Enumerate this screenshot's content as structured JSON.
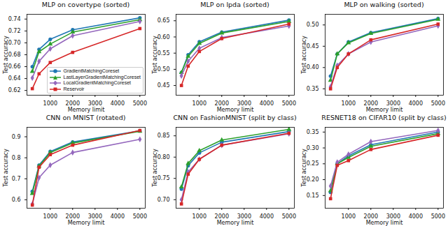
{
  "chart_data": [
    {
      "type": "line",
      "title": "MLP on covertype (sorted)",
      "x_label": "Memory limit",
      "y_label": "Test accuracy",
      "x": [
        200,
        500,
        1000,
        2000,
        5000
      ],
      "xlim": [
        -40,
        5240
      ],
      "xticks": [
        1000,
        2000,
        3000,
        4000,
        5000
      ],
      "ylim": [
        0.612,
        0.748
      ],
      "yticks": [
        0.62,
        0.64,
        0.66,
        0.68,
        0.7,
        {
          "value": 0.7,
          "label": "0.70"
        },
        0.72,
        0.74
      ],
      "grid": false,
      "legend": "lower right",
      "series": [
        {
          "name": "GradientMatchingCoreset",
          "color": "#1f77b4",
          "marker": "circle",
          "values": [
            0.66,
            0.689,
            0.706,
            0.722,
            0.742
          ]
        },
        {
          "name": "LastLayerGradientMatchingCoreset",
          "color": "#2ca02c",
          "marker": "triangle",
          "values": [
            0.652,
            0.685,
            0.698,
            0.718,
            0.739
          ]
        },
        {
          "name": "LocalGradientMatchingCoreset",
          "color": "#9467bd",
          "marker": "diamond",
          "values": [
            0.641,
            0.669,
            0.69,
            0.712,
            0.736
          ]
        },
        {
          "name": "Reservoir",
          "color": "#d62728",
          "marker": "square",
          "values": [
            0.623,
            0.648,
            0.667,
            0.684,
            0.724
          ]
        }
      ]
    },
    {
      "type": "line",
      "title": "MLP on lpda (sorted)",
      "x_label": "Memory limit",
      "y_label": "Test accuracy",
      "x": [
        200,
        500,
        1000,
        2000,
        5000
      ],
      "xlim": [
        -40,
        5240
      ],
      "xticks": [
        1000,
        2000,
        3000,
        4000,
        5000
      ],
      "ylim": [
        0.42,
        0.67
      ],
      "yticks": [
        0.45,
        {
          "value": 0.5,
          "label": "0.50"
        },
        0.55,
        {
          "value": 0.6,
          "label": "0.60"
        },
        0.65
      ],
      "grid": false,
      "series": [
        {
          "name": "GradientMatchingCoreset",
          "color": "#1f77b4",
          "marker": "circle",
          "values": [
            0.49,
            0.545,
            0.585,
            0.615,
            0.652
          ]
        },
        {
          "name": "LastLayerGradientMatchingCoreset",
          "color": "#2ca02c",
          "marker": "triangle",
          "values": [
            0.49,
            0.54,
            0.58,
            0.612,
            0.648
          ]
        },
        {
          "name": "LocalGradientMatchingCoreset",
          "color": "#9467bd",
          "marker": "diamond",
          "values": [
            0.48,
            0.525,
            0.565,
            0.598,
            0.634
          ]
        },
        {
          "name": "Reservoir",
          "color": "#d62728",
          "marker": "square",
          "values": [
            0.45,
            0.51,
            0.555,
            0.595,
            0.64
          ]
        }
      ]
    },
    {
      "type": "line",
      "title": "MLP on walking (sorted)",
      "x_label": "Memory limit",
      "y_label": "Test accuracy",
      "x": [
        200,
        500,
        1000,
        2000,
        5000
      ],
      "xlim": [
        -40,
        5240
      ],
      "xticks": [
        1000,
        2000,
        3000,
        4000,
        5000
      ],
      "ylim": [
        0.335,
        0.525
      ],
      "yticks": [
        0.35,
        {
          "value": 0.4,
          "label": "0.40"
        },
        0.45,
        {
          "value": 0.5,
          "label": "0.50"
        }
      ],
      "grid": false,
      "series": [
        {
          "name": "GradientMatchingCoreset",
          "color": "#1f77b4",
          "marker": "circle",
          "values": [
            0.38,
            0.432,
            0.46,
            0.482,
            0.515
          ]
        },
        {
          "name": "LastLayerGradientMatchingCoreset",
          "color": "#2ca02c",
          "marker": "triangle",
          "values": [
            0.37,
            0.432,
            0.458,
            0.48,
            0.513
          ]
        },
        {
          "name": "LocalGradientMatchingCoreset",
          "color": "#9467bd",
          "marker": "diamond",
          "values": [
            0.355,
            0.405,
            0.432,
            0.46,
            0.498
          ]
        },
        {
          "name": "Reservoir",
          "color": "#d62728",
          "marker": "square",
          "values": [
            0.35,
            0.4,
            0.432,
            0.465,
            0.502
          ]
        }
      ]
    },
    {
      "type": "line",
      "title": "CNN on MNIST (rotated)",
      "x_label": "Memory limit",
      "y_label": "Test accuracy",
      "x": [
        200,
        500,
        1000,
        2000,
        5000
      ],
      "xlim": [
        -40,
        5240
      ],
      "xticks": [
        1000,
        2000,
        3000,
        4000,
        5000
      ],
      "ylim": [
        0.56,
        0.945
      ],
      "yticks": [
        0.6,
        0.7,
        0.8,
        0.9
      ],
      "grid": false,
      "series": [
        {
          "name": "GradientMatchingCoreset",
          "color": "#1f77b4",
          "marker": "circle",
          "values": [
            0.64,
            0.765,
            0.83,
            0.875,
            0.928
          ]
        },
        {
          "name": "LastLayerGradientMatchingCoreset",
          "color": "#2ca02c",
          "marker": "triangle",
          "values": [
            0.63,
            0.76,
            0.825,
            0.87,
            0.926
          ]
        },
        {
          "name": "LocalGradientMatchingCoreset",
          "color": "#9467bd",
          "marker": "diamond",
          "values": [
            0.58,
            0.705,
            0.765,
            0.825,
            0.888
          ]
        },
        {
          "name": "Reservoir",
          "color": "#d62728",
          "marker": "square",
          "values": [
            0.575,
            0.755,
            0.815,
            0.86,
            0.93
          ]
        }
      ]
    },
    {
      "type": "line",
      "title": "CNN on FashionMNIST (split by class)",
      "x_label": "Memory limit",
      "y_label": "Test accuracy",
      "x": [
        200,
        500,
        1000,
        2000,
        5000
      ],
      "xlim": [
        -40,
        5240
      ],
      "xticks": [
        1000,
        2000,
        3000,
        4000,
        5000
      ],
      "ylim": [
        0.68,
        0.87
      ],
      "yticks": [
        {
          "value": 0.7,
          "label": "0.70"
        },
        0.75,
        {
          "value": 0.8,
          "label": "0.80"
        },
        0.85
      ],
      "grid": false,
      "series": [
        {
          "name": "GradientMatchingCoreset",
          "color": "#1f77b4",
          "marker": "circle",
          "values": [
            0.725,
            0.78,
            0.81,
            0.835,
            0.86
          ]
        },
        {
          "name": "LastLayerGradientMatchingCoreset",
          "color": "#2ca02c",
          "marker": "triangle",
          "values": [
            0.73,
            0.785,
            0.815,
            0.84,
            0.865
          ]
        },
        {
          "name": "LocalGradientMatchingCoreset",
          "color": "#9467bd",
          "marker": "diamond",
          "values": [
            0.7,
            0.765,
            0.795,
            0.828,
            0.855
          ]
        },
        {
          "name": "Reservoir",
          "color": "#d62728",
          "marker": "square",
          "values": [
            0.69,
            0.76,
            0.795,
            0.828,
            0.856
          ]
        }
      ]
    },
    {
      "type": "line",
      "title": "RESNET18 on CIFAR10 (split by class)",
      "x_label": "Memory limit",
      "y_label": "Test accuracy",
      "x": [
        200,
        500,
        1000,
        2000,
        5000
      ],
      "xlim": [
        -40,
        5240
      ],
      "xticks": [
        1000,
        2000,
        3000,
        4000,
        5000
      ],
      "ylim": [
        0.11,
        0.365
      ],
      "yticks": [
        0.15,
        {
          "value": 0.2,
          "label": "0.20"
        },
        0.25,
        {
          "value": 0.3,
          "label": "0.30"
        },
        0.35
      ],
      "grid": false,
      "series": [
        {
          "name": "GradientMatchingCoreset",
          "color": "#1f77b4",
          "marker": "circle",
          "values": [
            0.16,
            0.25,
            0.275,
            0.31,
            0.35
          ]
        },
        {
          "name": "LastLayerGradientMatchingCoreset",
          "color": "#2ca02c",
          "marker": "triangle",
          "values": [
            0.165,
            0.25,
            0.27,
            0.305,
            0.345
          ]
        },
        {
          "name": "LocalGradientMatchingCoreset",
          "color": "#9467bd",
          "marker": "diamond",
          "values": [
            0.18,
            0.255,
            0.28,
            0.32,
            0.355
          ]
        },
        {
          "name": "Reservoir",
          "color": "#d62728",
          "marker": "square",
          "values": [
            0.14,
            0.245,
            0.26,
            0.295,
            0.34
          ]
        }
      ]
    }
  ]
}
